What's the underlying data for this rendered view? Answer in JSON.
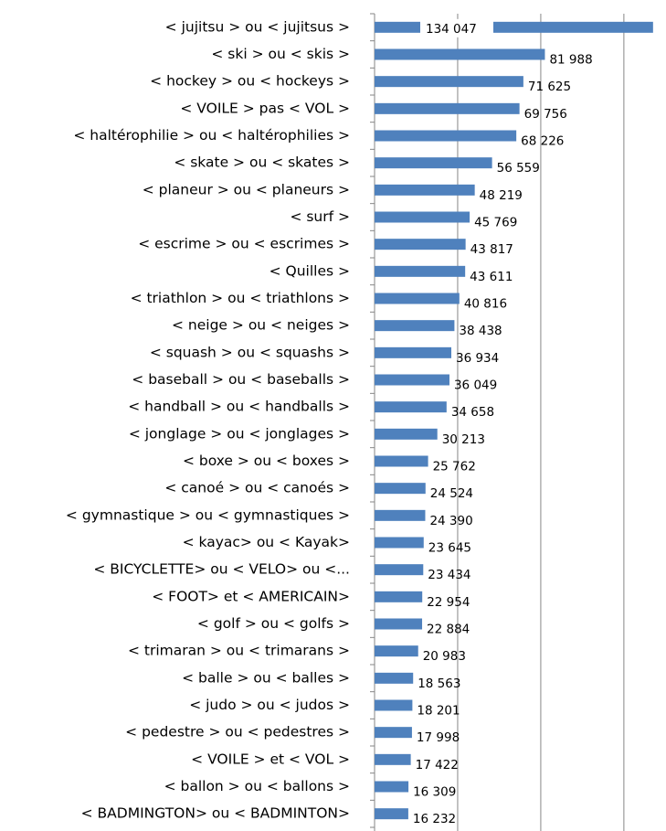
{
  "chart_data": {
    "type": "barh",
    "orientation": "horizontal",
    "categories": [
      "< jujitsu > ou < jujitsus >",
      "< ski > ou < skis >",
      "< hockey > ou < hockeys >",
      "< VOILE > pas < VOL >",
      "< haltérophilie > ou < haltérophilies >",
      "< skate > ou < skates >",
      "< planeur > ou < planeurs >",
      "< surf >",
      "< escrime > ou < escrimes >",
      "< Quilles >",
      "< triathlon > ou < triathlons >",
      "< neige > ou < neiges >",
      "< squash > ou < squashs >",
      "< baseball > ou < baseballs >",
      "< handball > ou < handballs >",
      "< jonglage > ou < jonglages >",
      "< boxe > ou < boxes >",
      "< canoé > ou < canoés >",
      "< gymnastique > ou < gymnastiques >",
      "< kayac> ou < Kayak>",
      "< BICYCLETTE> ou < VELO> ou <...",
      "< FOOT> et < AMERICAIN>",
      "< golf > ou < golfs >",
      "< trimaran > ou < trimarans >",
      "< balle > ou < balles >",
      "< judo > ou < judos >",
      "< pedestre > ou < pedestres >",
      "< VOILE > et < VOL >",
      "< ballon > ou < ballons >",
      "< BADMINGTON> ou < BADMINTON>"
    ],
    "values": [
      134047,
      81988,
      71625,
      69756,
      68226,
      56559,
      48219,
      45769,
      43817,
      43611,
      40816,
      38438,
      36934,
      36049,
      34658,
      30213,
      25762,
      24524,
      24390,
      23645,
      23434,
      22954,
      22884,
      20983,
      18563,
      18201,
      17998,
      17422,
      16309,
      16232
    ],
    "value_labels": [
      "134 047",
      "81 988",
      "71 625",
      "69 756",
      "68 226",
      "56 559",
      "48 219",
      "45 769",
      "43 817",
      "43 611",
      "40 816",
      "38 438",
      "36 934",
      "36 049",
      "34 658",
      "30 213",
      "25 762",
      "24 524",
      "24 390",
      "23 645",
      "23 434",
      "22 954",
      "22 884",
      "20 983",
      "18 563",
      "18 201",
      "17 998",
      "17 422",
      "16 309",
      "16 232"
    ],
    "color": "#4f81bd",
    "xlim": [
      0,
      135000
    ],
    "xticks": [
      0,
      40000,
      80000,
      120000
    ],
    "grid": true
  }
}
